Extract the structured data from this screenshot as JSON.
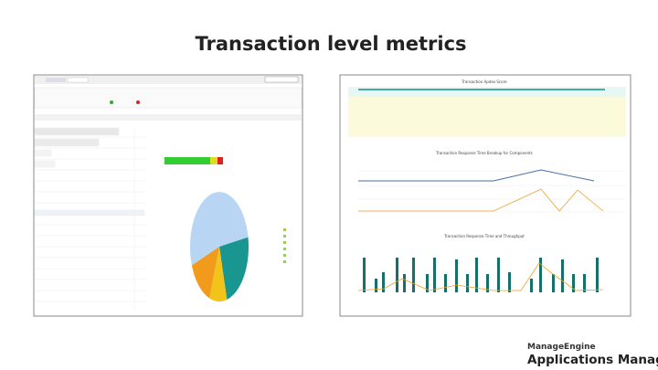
{
  "header": {
    "title": "Transaction level metrics"
  },
  "right_panel": {
    "charts": [
      {
        "title": "Transaction Apdex Score"
      },
      {
        "title": "Transaction Response Time Breakup for Components"
      },
      {
        "title": "Transaction Response Time and Throughput"
      }
    ]
  },
  "footer": {
    "brand": "ManageEngine",
    "product": "Applications Manager"
  }
}
